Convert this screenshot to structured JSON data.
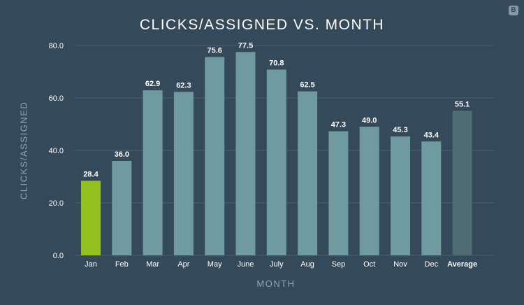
{
  "badge_text": "B",
  "chart_data": {
    "type": "bar",
    "title": "CLICKS/ASSIGNED VS. MONTH",
    "xlabel": "MONTH",
    "ylabel": "CLICKS/ASSIGNED",
    "ylim": [
      0,
      80
    ],
    "yticks": [
      "0.0",
      "20.0",
      "40.0",
      "60.0",
      "80.0"
    ],
    "grid": true,
    "categories": [
      "Jan",
      "Feb",
      "Mar",
      "Apr",
      "May",
      "June",
      "July",
      "Aug",
      "Sep",
      "Oct",
      "Nov",
      "Dec",
      "Average"
    ],
    "values": [
      28.4,
      36.0,
      62.9,
      62.3,
      75.6,
      77.5,
      70.8,
      62.5,
      47.3,
      49.0,
      45.3,
      43.4,
      55.1
    ],
    "value_labels": [
      "28.4",
      "36.0",
      "62.9",
      "62.3",
      "75.6",
      "77.5",
      "70.8",
      "62.5",
      "47.3",
      "49.0",
      "45.3",
      "43.4",
      "55.1"
    ],
    "colors": {
      "highlight": "#93c01f",
      "default": "#6f9ba0",
      "average": "#4f6b74",
      "gridline": "#4a5f6f",
      "axis_label": "#93a4b2",
      "tick_label": "#ffffff",
      "background": "#34495a"
    }
  }
}
